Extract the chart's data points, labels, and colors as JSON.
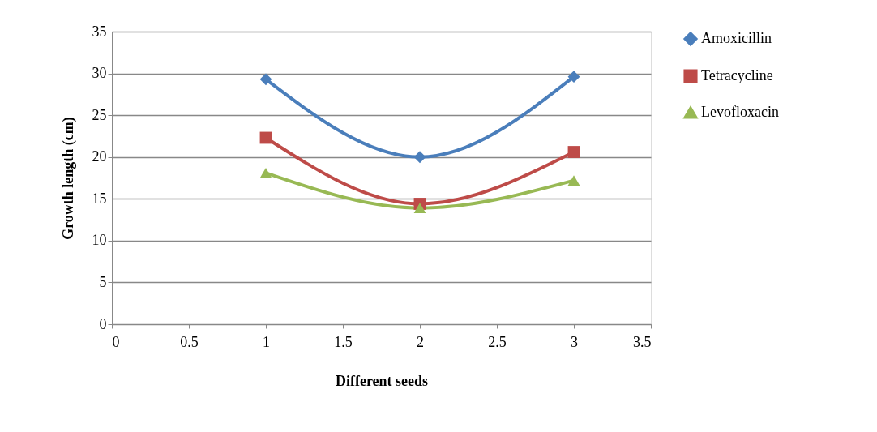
{
  "chart_data": {
    "type": "line",
    "xlabel": "Different seeds",
    "ylabel": "Growth length (cm)",
    "x": [
      1,
      2,
      3
    ],
    "series": [
      {
        "name": "Amoxicillin",
        "color": "#4a7ebb",
        "marker": "diamond",
        "values": [
          29.3,
          20.0,
          29.6
        ]
      },
      {
        "name": "Tetracycline",
        "color": "#be4b48",
        "marker": "square",
        "values": [
          22.3,
          14.4,
          20.6
        ]
      },
      {
        "name": "Levofloxacin",
        "color": "#98b954",
        "marker": "triangle",
        "values": [
          18.1,
          13.9,
          17.2
        ]
      }
    ],
    "xlim": [
      0,
      3.5
    ],
    "xticks": [
      0,
      0.5,
      1,
      1.5,
      2,
      2.5,
      3,
      3.5
    ],
    "ylim": [
      0,
      35
    ],
    "yticks": [
      0,
      5,
      10,
      15,
      20,
      25,
      30,
      35
    ],
    "grid": "y",
    "legend": "right",
    "line_style": "solid"
  }
}
